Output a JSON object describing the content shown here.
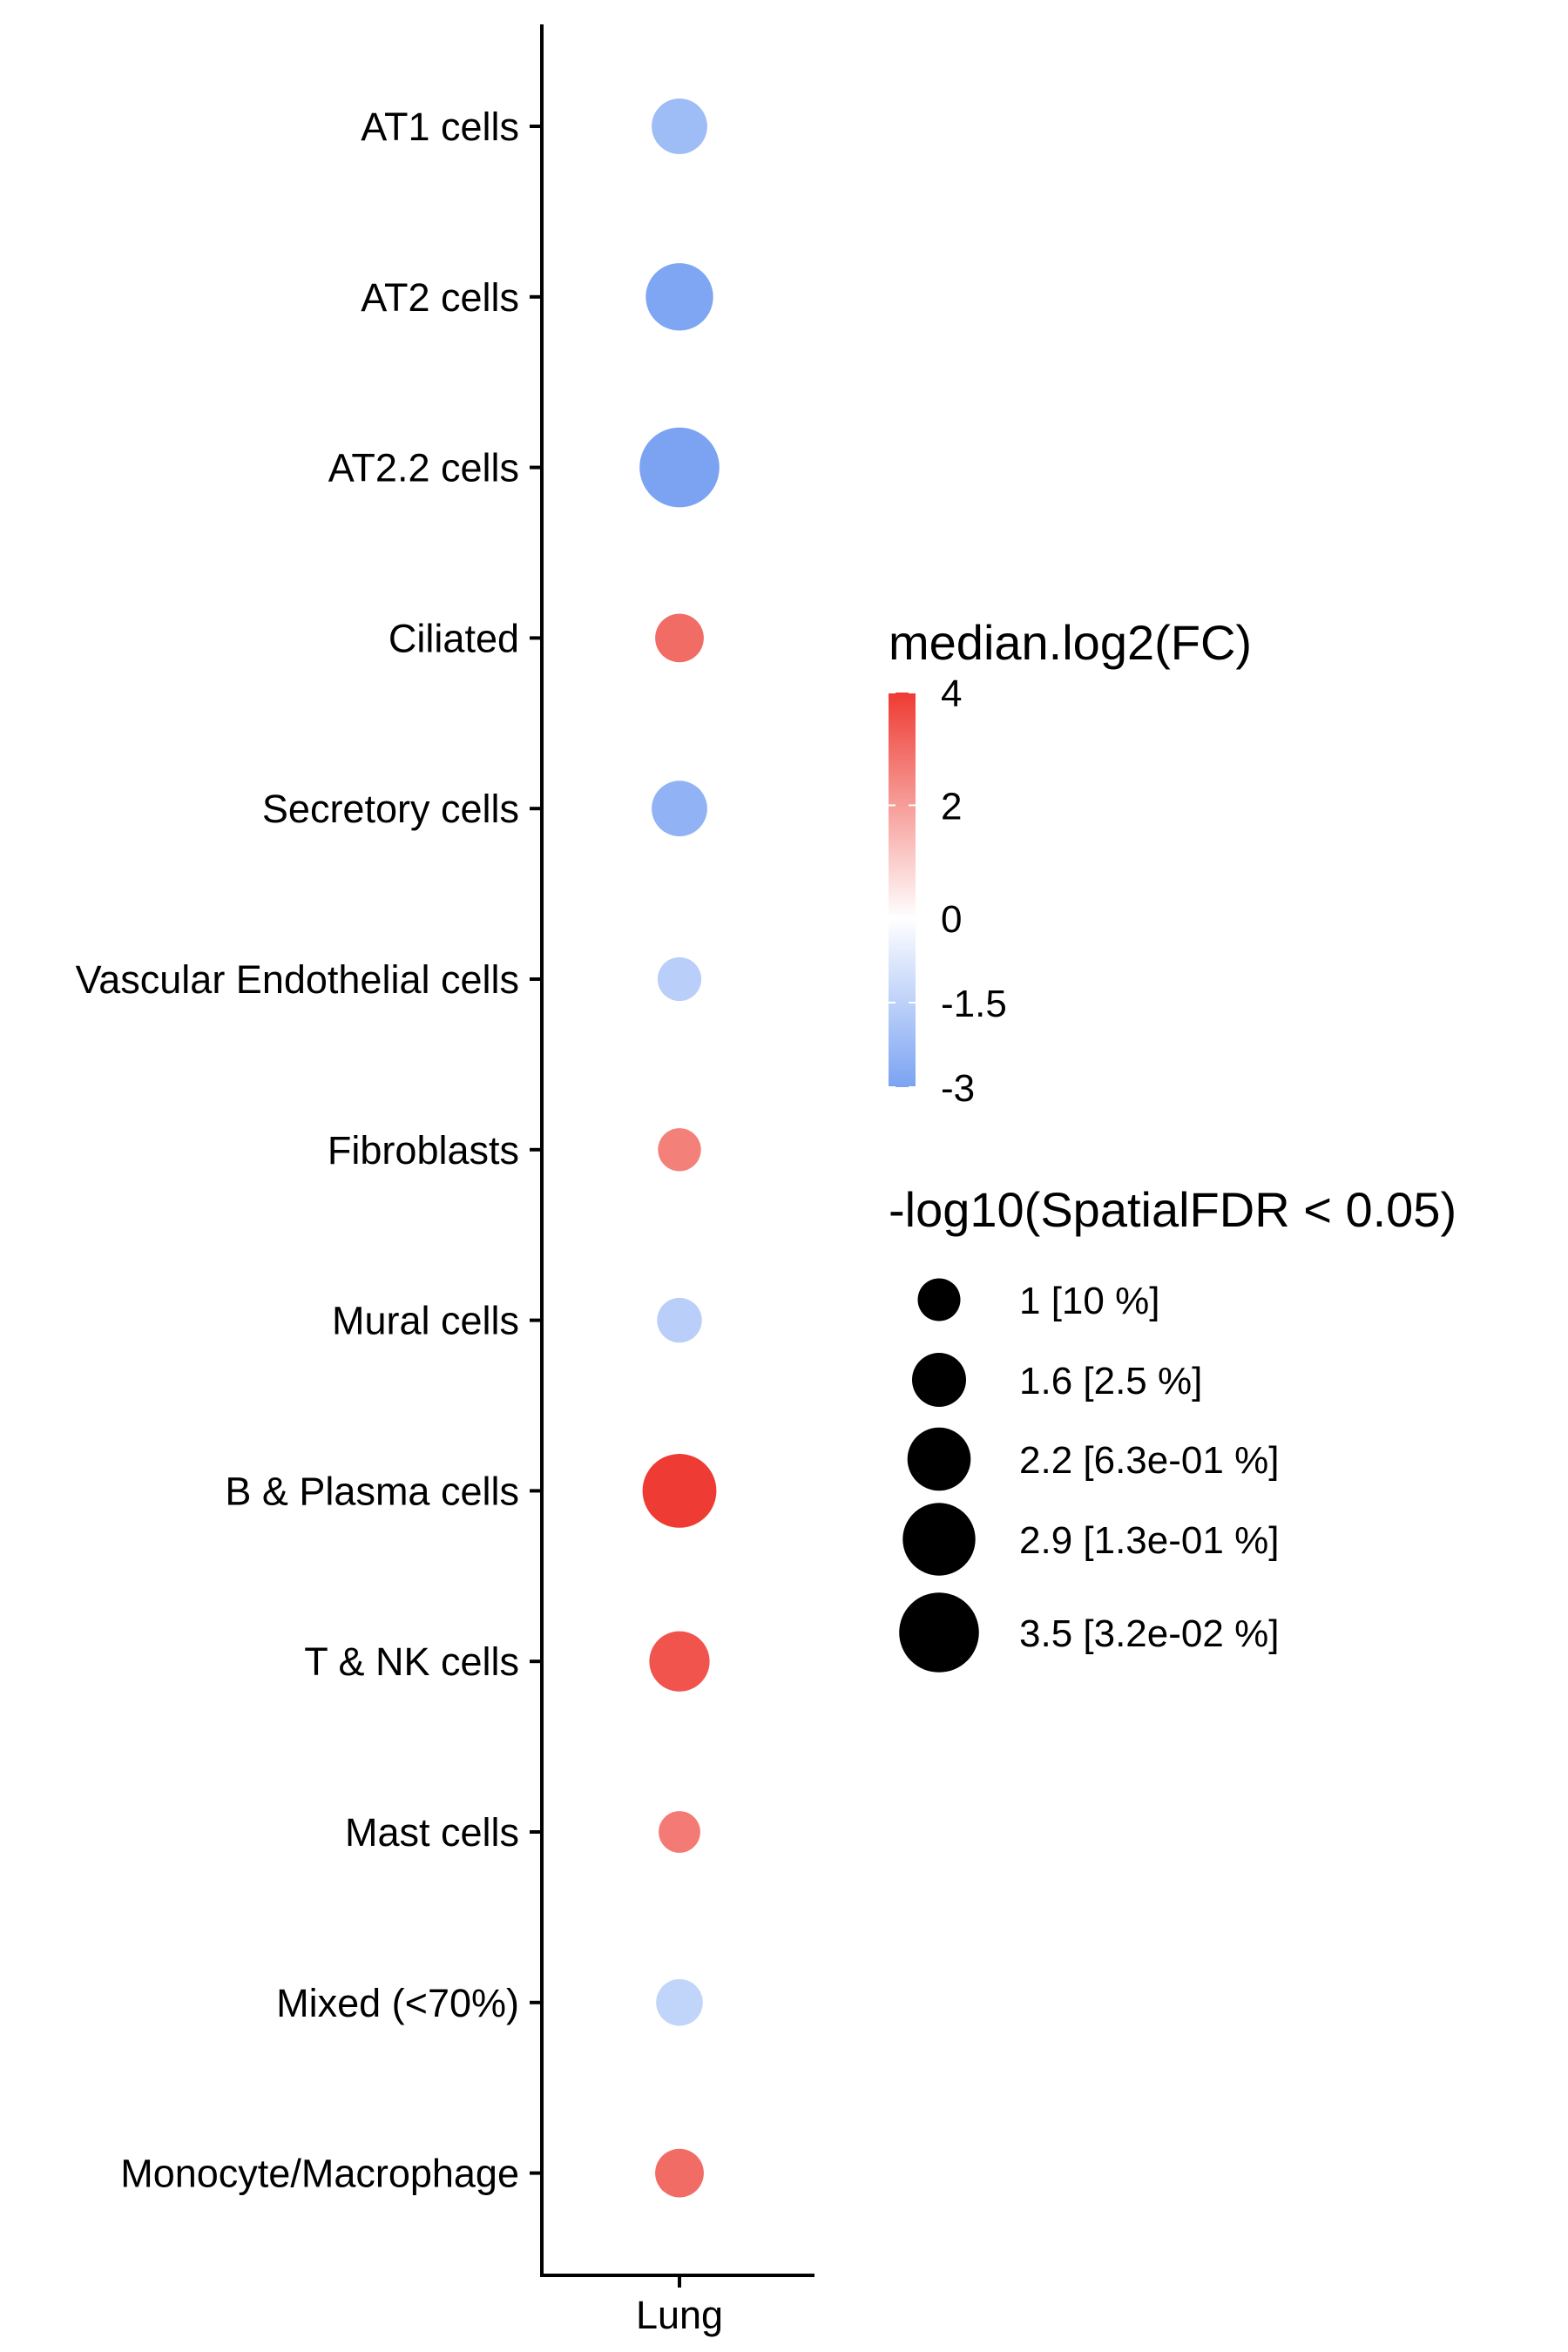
{
  "chart_data": {
    "type": "scatter",
    "subtype": "dot-plot",
    "x_categories": [
      "Lung"
    ],
    "y_categories": [
      "AT1 cells",
      "AT2 cells",
      "AT2.2 cells",
      "Ciliated",
      "Secretory cells",
      "Vascular Endothelial cells",
      "Fibroblasts",
      "Mural cells",
      "B & Plasma cells",
      "T & NK cells",
      "Mast cells",
      "Mixed (<70%)",
      "Monocyte/Macrophage"
    ],
    "points": [
      {
        "x": "Lung",
        "y": "AT1 cells",
        "median_log2FC": -2.2,
        "neg_log10_fdr": 1.7
      },
      {
        "x": "Lung",
        "y": "AT2 cells",
        "median_log2FC": -2.9,
        "neg_log10_fdr": 2.5
      },
      {
        "x": "Lung",
        "y": "AT2.2 cells",
        "median_log2FC": -3.0,
        "neg_log10_fdr": 3.5
      },
      {
        "x": "Lung",
        "y": "Ciliated",
        "median_log2FC": 3.0,
        "neg_log10_fdr": 1.3
      },
      {
        "x": "Lung",
        "y": "Secretory cells",
        "median_log2FC": -2.5,
        "neg_log10_fdr": 1.7
      },
      {
        "x": "Lung",
        "y": "Vascular Endothelial cells",
        "median_log2FC": -1.6,
        "neg_log10_fdr": 1.05
      },
      {
        "x": "Lung",
        "y": "Fibroblasts",
        "median_log2FC": 2.6,
        "neg_log10_fdr": 1.02
      },
      {
        "x": "Lung",
        "y": "Mural cells",
        "median_log2FC": -1.6,
        "neg_log10_fdr": 1.1
      },
      {
        "x": "Lung",
        "y": "B & Plasma cells",
        "median_log2FC": 4.0,
        "neg_log10_fdr": 3.0
      },
      {
        "x": "Lung",
        "y": "T & NK cells",
        "median_log2FC": 3.5,
        "neg_log10_fdr": 2.0
      },
      {
        "x": "Lung",
        "y": "Mast cells",
        "median_log2FC": 2.7,
        "neg_log10_fdr": 0.95
      },
      {
        "x": "Lung",
        "y": "Mixed (<70%)",
        "median_log2FC": -1.4,
        "neg_log10_fdr": 1.2
      },
      {
        "x": "Lung",
        "y": "Monocyte/Macrophage",
        "median_log2FC": 3.0,
        "neg_log10_fdr": 1.3
      }
    ],
    "color_legend": {
      "title": "median.log2(FC)",
      "min": -3,
      "max": 4,
      "low_color": "#7BA3F2",
      "mid_color": "#FFFFFF",
      "high_color": "#EE3B33",
      "ticks": [
        {
          "value": 4,
          "label": "4"
        },
        {
          "value": 2,
          "label": "2"
        },
        {
          "value": 0,
          "label": "0"
        },
        {
          "value": -1.5,
          "label": "-1.5"
        },
        {
          "value": -3,
          "label": "-3"
        }
      ]
    },
    "size_legend": {
      "title": "-log10(SpatialFDR < 0.05)",
      "entries": [
        {
          "value": 1,
          "label": "1 [10 %]"
        },
        {
          "value": 1.6,
          "label": "1.6 [2.5 %]"
        },
        {
          "value": 2.2,
          "label": "2.2 [6.3e-01 %]"
        },
        {
          "value": 2.9,
          "label": "2.9 [1.3e-01 %]"
        },
        {
          "value": 3.5,
          "label": "3.5 [3.2e-02 %]"
        }
      ]
    },
    "legend_position": "right",
    "grid": false
  }
}
